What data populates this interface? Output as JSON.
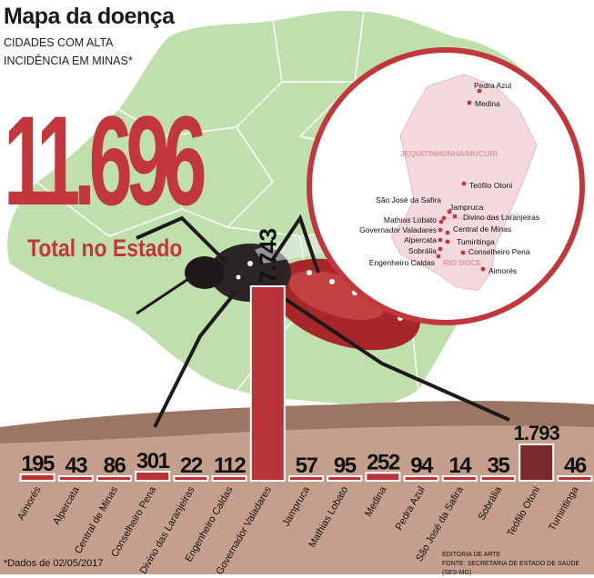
{
  "header": {
    "title": "Mapa da doença",
    "subtitle_line1": "CIDADES COM ALTA",
    "subtitle_line2": "INCIDÊNCIA EM MINAS*"
  },
  "total": {
    "value": "11.696",
    "label": "Total no Estado"
  },
  "inset_map": {
    "regions": [
      "JEQUITINHONHA/MUCURI",
      "RIO DOCE"
    ],
    "cities": [
      "Pedra Azul",
      "Medina",
      "Teófilo Otoni",
      "São José da Safira",
      "Jampruca",
      "Mathias Lobato",
      "Divino das Laranjeiras",
      "Governador Valadares",
      "Central de Minas",
      "Alpercata",
      "Tumiritinga",
      "Sobrália",
      "Conselheiro Pena",
      "Engenheiro Caldas",
      "Aimorés"
    ]
  },
  "chart_data": {
    "type": "bar",
    "categories": [
      "Aimorés",
      "Alpercata",
      "Central de Minas",
      "Conselheiro Pena",
      "Divino das Laranjeiras",
      "Engenheiro Caldas",
      "Governador Valadares",
      "Jampruca",
      "Mathias Lobato",
      "Medina",
      "Pedra Azul",
      "São José da Safira",
      "Sobrália",
      "Teófilo Otoni",
      "Tumiritinga"
    ],
    "values": [
      195,
      43,
      86,
      301,
      22,
      112,
      7743,
      57,
      95,
      252,
      94,
      14,
      35,
      1793,
      46
    ],
    "value_labels": [
      "195",
      "43",
      "86",
      "301",
      "22",
      "112",
      "7.743",
      "57",
      "95",
      "252",
      "94",
      "14",
      "35",
      "1.793",
      "46"
    ],
    "colors": {
      "bar": "#b8333a",
      "bar_dark": "#7a2a2c",
      "big": "#c2373c"
    }
  },
  "footer": {
    "note": "*Dados de 02/05/2017",
    "credit_line1": "EDITORIA DE ARTE",
    "credit_line2": "FONTE: SECRETARIA DE ESTADO DE SAÚDE (SES-MG)"
  }
}
